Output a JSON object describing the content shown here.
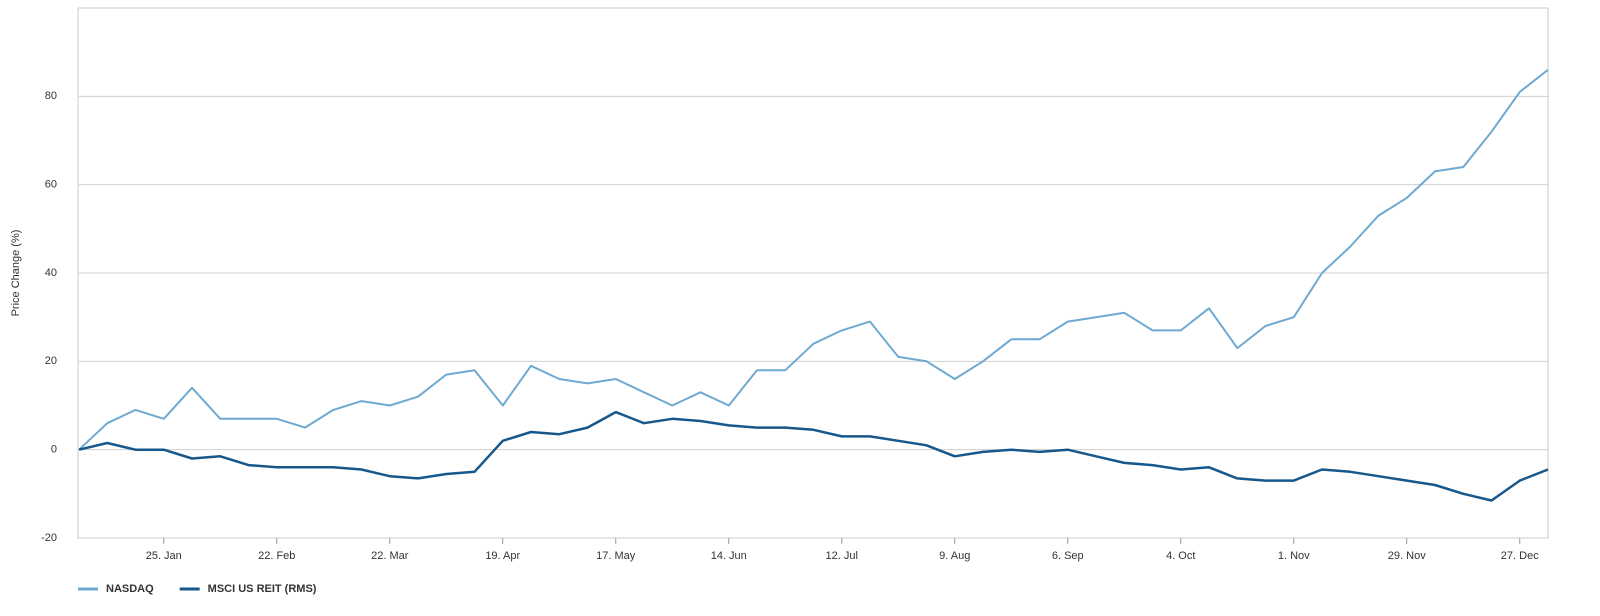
{
  "chart_data": {
    "type": "line",
    "y_label": "Price Change (%)",
    "categories": [
      null,
      null,
      null,
      "25. Jan",
      null,
      null,
      null,
      "22. Feb",
      null,
      null,
      null,
      "22. Mar",
      null,
      null,
      null,
      "19. Apr",
      null,
      null,
      null,
      "17. May",
      null,
      null,
      null,
      "14. Jun",
      null,
      null,
      null,
      "12. Jul",
      null,
      null,
      null,
      "9. Aug",
      null,
      null,
      null,
      "6. Sep",
      null,
      null,
      null,
      "4. Oct",
      null,
      null,
      null,
      "1. Nov",
      null,
      null,
      null,
      "29. Nov",
      null,
      null,
      null,
      "27. Dec",
      null
    ],
    "series": [
      {
        "name": "NASDAQ",
        "color": "#6ea9d2",
        "values": [
          0,
          6,
          9,
          7,
          14,
          7,
          7,
          7,
          5,
          9,
          11,
          10,
          12,
          17,
          18,
          10,
          19,
          16,
          15,
          16,
          13,
          10,
          13,
          10,
          18,
          18,
          24,
          27,
          29,
          21,
          20,
          16,
          20,
          25,
          25,
          29,
          30,
          31,
          27,
          27,
          32,
          23,
          28,
          30,
          40,
          46,
          53,
          57,
          63,
          64,
          72,
          81,
          86
        ]
      },
      {
        "name": "MSCI US REIT (RMS)",
        "color": "#17588c",
        "values": [
          0,
          1.5,
          0,
          0,
          -2,
          -1.5,
          -3.5,
          -4,
          -4,
          -4,
          -4.5,
          -6,
          -6.5,
          -5.5,
          -5,
          2,
          4,
          3.5,
          5,
          8.5,
          6,
          7,
          6.5,
          5.5,
          5,
          5,
          4.5,
          3,
          3,
          2,
          1,
          -1.5,
          -0.5,
          0,
          -0.5,
          0,
          -1.5,
          -3,
          -3.5,
          -4.5,
          -4,
          -6.5,
          -7,
          -7,
          -4.5,
          -5,
          -6,
          -7,
          -8,
          -10,
          -11.5,
          -7,
          -4.5
        ]
      }
    ],
    "ylim": [
      -20,
      100
    ],
    "yticks": [
      -20,
      0,
      20,
      40,
      60,
      80
    ],
    "grid": true
  }
}
